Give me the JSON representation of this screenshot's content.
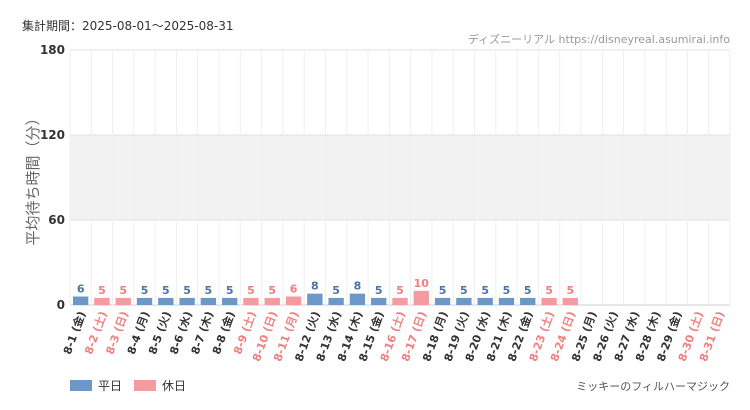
{
  "header": {
    "period_label": "集計期間：2025-08-01～2025-08-31",
    "credit": "ディズニーリアル https://disneyreal.asumirai.info"
  },
  "footer": {
    "attraction": "ミッキーのフィルハーマジック"
  },
  "legend": {
    "weekday": "平日",
    "holiday": "休日"
  },
  "colors": {
    "weekday": "#6b98c8",
    "holiday": "#f59a9e",
    "weekday_text": "#4a73a8",
    "holiday_text": "#f08080",
    "band": "#f2f2f2",
    "grid": "#e0e0e0"
  },
  "chart_data": {
    "type": "bar",
    "ylabel": "平均待ち時間（分）",
    "ylim": [
      0,
      180
    ],
    "yticks": [
      0,
      60,
      120,
      180
    ],
    "grid": true,
    "legend_position": "bottom-left",
    "categories": [
      "8-1 (金)",
      "8-2 (土)",
      "8-3 (日)",
      "8-4 (月)",
      "8-5 (火)",
      "8-6 (水)",
      "8-7 (木)",
      "8-8 (金)",
      "8-9 (土)",
      "8-10 (日)",
      "8-11 (月)",
      "8-12 (火)",
      "8-13 (水)",
      "8-14 (木)",
      "8-15 (金)",
      "8-16 (土)",
      "8-17 (日)",
      "8-18 (月)",
      "8-19 (火)",
      "8-20 (水)",
      "8-21 (木)",
      "8-22 (金)",
      "8-23 (土)",
      "8-24 (日)",
      "8-25 (月)",
      "8-26 (火)",
      "8-27 (水)",
      "8-28 (木)",
      "8-29 (金)",
      "8-30 (土)",
      "8-31 (日)"
    ],
    "day_type": [
      "weekday",
      "holiday",
      "holiday",
      "weekday",
      "weekday",
      "weekday",
      "weekday",
      "weekday",
      "holiday",
      "holiday",
      "holiday",
      "weekday",
      "weekday",
      "weekday",
      "weekday",
      "holiday",
      "holiday",
      "weekday",
      "weekday",
      "weekday",
      "weekday",
      "weekday",
      "holiday",
      "holiday",
      "weekday",
      "weekday",
      "weekday",
      "weekday",
      "weekday",
      "holiday",
      "holiday"
    ],
    "values": [
      6,
      5,
      5,
      5,
      5,
      5,
      5,
      5,
      5,
      5,
      6,
      8,
      5,
      8,
      5,
      5,
      10,
      5,
      5,
      5,
      5,
      5,
      5,
      5,
      null,
      null,
      null,
      null,
      null,
      null,
      null
    ]
  }
}
